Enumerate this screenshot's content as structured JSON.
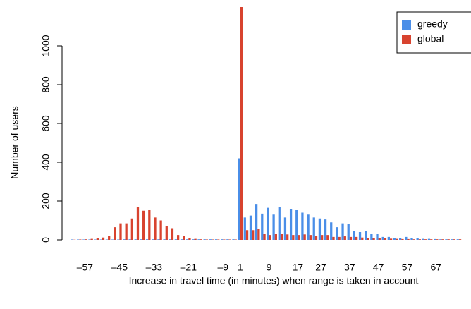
{
  "chart_data": {
    "type": "bar",
    "x_label": "Increase in travel time (in minutes) when range is taken in account",
    "y_label": "Number of users",
    "categories": [
      null,
      null,
      "–57",
      null,
      null,
      null,
      null,
      null,
      "–45",
      null,
      null,
      null,
      null,
      null,
      "–33",
      null,
      null,
      null,
      null,
      null,
      "–21",
      null,
      null,
      null,
      null,
      null,
      "–9",
      null,
      null,
      "1",
      null,
      null,
      null,
      null,
      "9",
      null,
      null,
      null,
      null,
      "17",
      null,
      null,
      null,
      "27",
      null,
      null,
      null,
      null,
      "37",
      null,
      null,
      null,
      null,
      "47",
      null,
      null,
      null,
      null,
      "57",
      null,
      null,
      null,
      null,
      "67",
      null,
      null,
      null,
      null
    ],
    "series": [
      {
        "name": "greedy",
        "color": "#4a8ee8",
        "values": [
          2,
          2,
          2,
          2,
          2,
          2,
          2,
          2,
          2,
          3,
          3,
          3,
          3,
          3,
          3,
          3,
          3,
          3,
          3,
          3,
          3,
          3,
          3,
          3,
          3,
          3,
          3,
          3,
          3,
          420,
          115,
          125,
          185,
          135,
          165,
          130,
          170,
          115,
          160,
          155,
          140,
          130,
          115,
          110,
          105,
          90,
          65,
          85,
          80,
          45,
          40,
          45,
          30,
          30,
          15,
          15,
          10,
          10,
          15,
          8,
          10,
          5,
          5,
          4,
          3,
          3,
          3,
          3
        ]
      },
      {
        "name": "global",
        "color": "#d8432f",
        "values": [
          1,
          2,
          3,
          5,
          8,
          12,
          20,
          65,
          85,
          85,
          110,
          170,
          150,
          155,
          115,
          100,
          70,
          60,
          25,
          20,
          10,
          5,
          3,
          2,
          2,
          2,
          2,
          2,
          2,
          1200,
          50,
          50,
          55,
          30,
          25,
          30,
          30,
          28,
          25,
          25,
          28,
          25,
          20,
          25,
          25,
          15,
          15,
          18,
          15,
          15,
          12,
          10,
          10,
          8,
          8,
          6,
          5,
          4,
          4,
          3,
          3,
          3,
          3,
          3,
          3,
          3,
          3,
          3
        ]
      }
    ],
    "ylim": [
      0,
      1200
    ],
    "yticks": [
      0,
      200,
      400,
      600,
      800,
      1000
    ],
    "legend": "top-right"
  }
}
